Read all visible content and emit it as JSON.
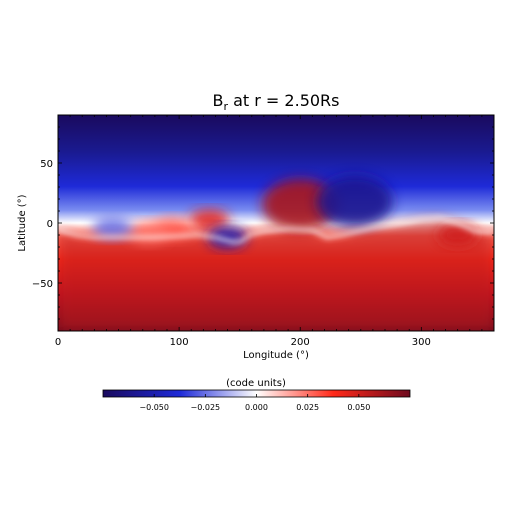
{
  "chart_data": {
    "type": "heatmap",
    "title": "B",
    "title_subscript": "r",
    "title_rest": " at r = 2.50Rs",
    "xlabel": "Longitude (°)",
    "ylabel": "Latitude (°)",
    "xlim": [
      0,
      360
    ],
    "ylim": [
      -90,
      90
    ],
    "x_ticks": [
      0,
      100,
      200,
      300
    ],
    "x_tick_labels": [
      "0",
      "100",
      "200",
      "300"
    ],
    "y_ticks": [
      -50,
      0,
      50
    ],
    "y_tick_labels": [
      "−50",
      "0",
      "50"
    ],
    "colorbar": {
      "label": "(code units)",
      "range": [
        -0.075,
        0.075
      ],
      "ticks": [
        -0.05,
        -0.025,
        0,
        0.025,
        0.05
      ],
      "tick_labels": [
        "−0.050",
        "−0.025",
        "0.000",
        "0.025",
        "0.050"
      ],
      "colors": [
        "#1a0a5e",
        "#1e2ad8",
        "#ffffff",
        "#ff2a1a",
        "#6e0a1e"
      ]
    },
    "grid": false,
    "neutral_line": [
      [
        0,
        -6
      ],
      [
        15,
        -10
      ],
      [
        30,
        -12
      ],
      [
        50,
        -12
      ],
      [
        65,
        -12
      ],
      [
        80,
        -12
      ],
      [
        100,
        -11
      ],
      [
        115,
        -10
      ],
      [
        130,
        -12
      ],
      [
        145,
        -16
      ],
      [
        152,
        -15
      ],
      [
        158,
        -10
      ],
      [
        170,
        -7
      ],
      [
        190,
        -5
      ],
      [
        210,
        -6
      ],
      [
        222,
        -12
      ],
      [
        235,
        -10
      ],
      [
        260,
        -4
      ],
      [
        285,
        0
      ],
      [
        300,
        3
      ],
      [
        315,
        4
      ],
      [
        330,
        0
      ],
      [
        345,
        -7
      ],
      [
        360,
        -8
      ]
    ],
    "field_features": [
      {
        "lon": 200,
        "lat": 15,
        "value": 0.06
      },
      {
        "lon": 125,
        "lat": 2,
        "value": 0.045
      },
      {
        "lon": 95,
        "lat": -5,
        "value": 0.03
      },
      {
        "lon": 75,
        "lat": -8,
        "value": 0.025
      },
      {
        "lon": 140,
        "lat": -12,
        "value": -0.05
      },
      {
        "lon": 45,
        "lat": -4,
        "value": -0.025
      },
      {
        "lon": 245,
        "lat": 18,
        "value": -0.06
      },
      {
        "lon": 330,
        "lat": -10,
        "value": 0.05
      }
    ]
  }
}
